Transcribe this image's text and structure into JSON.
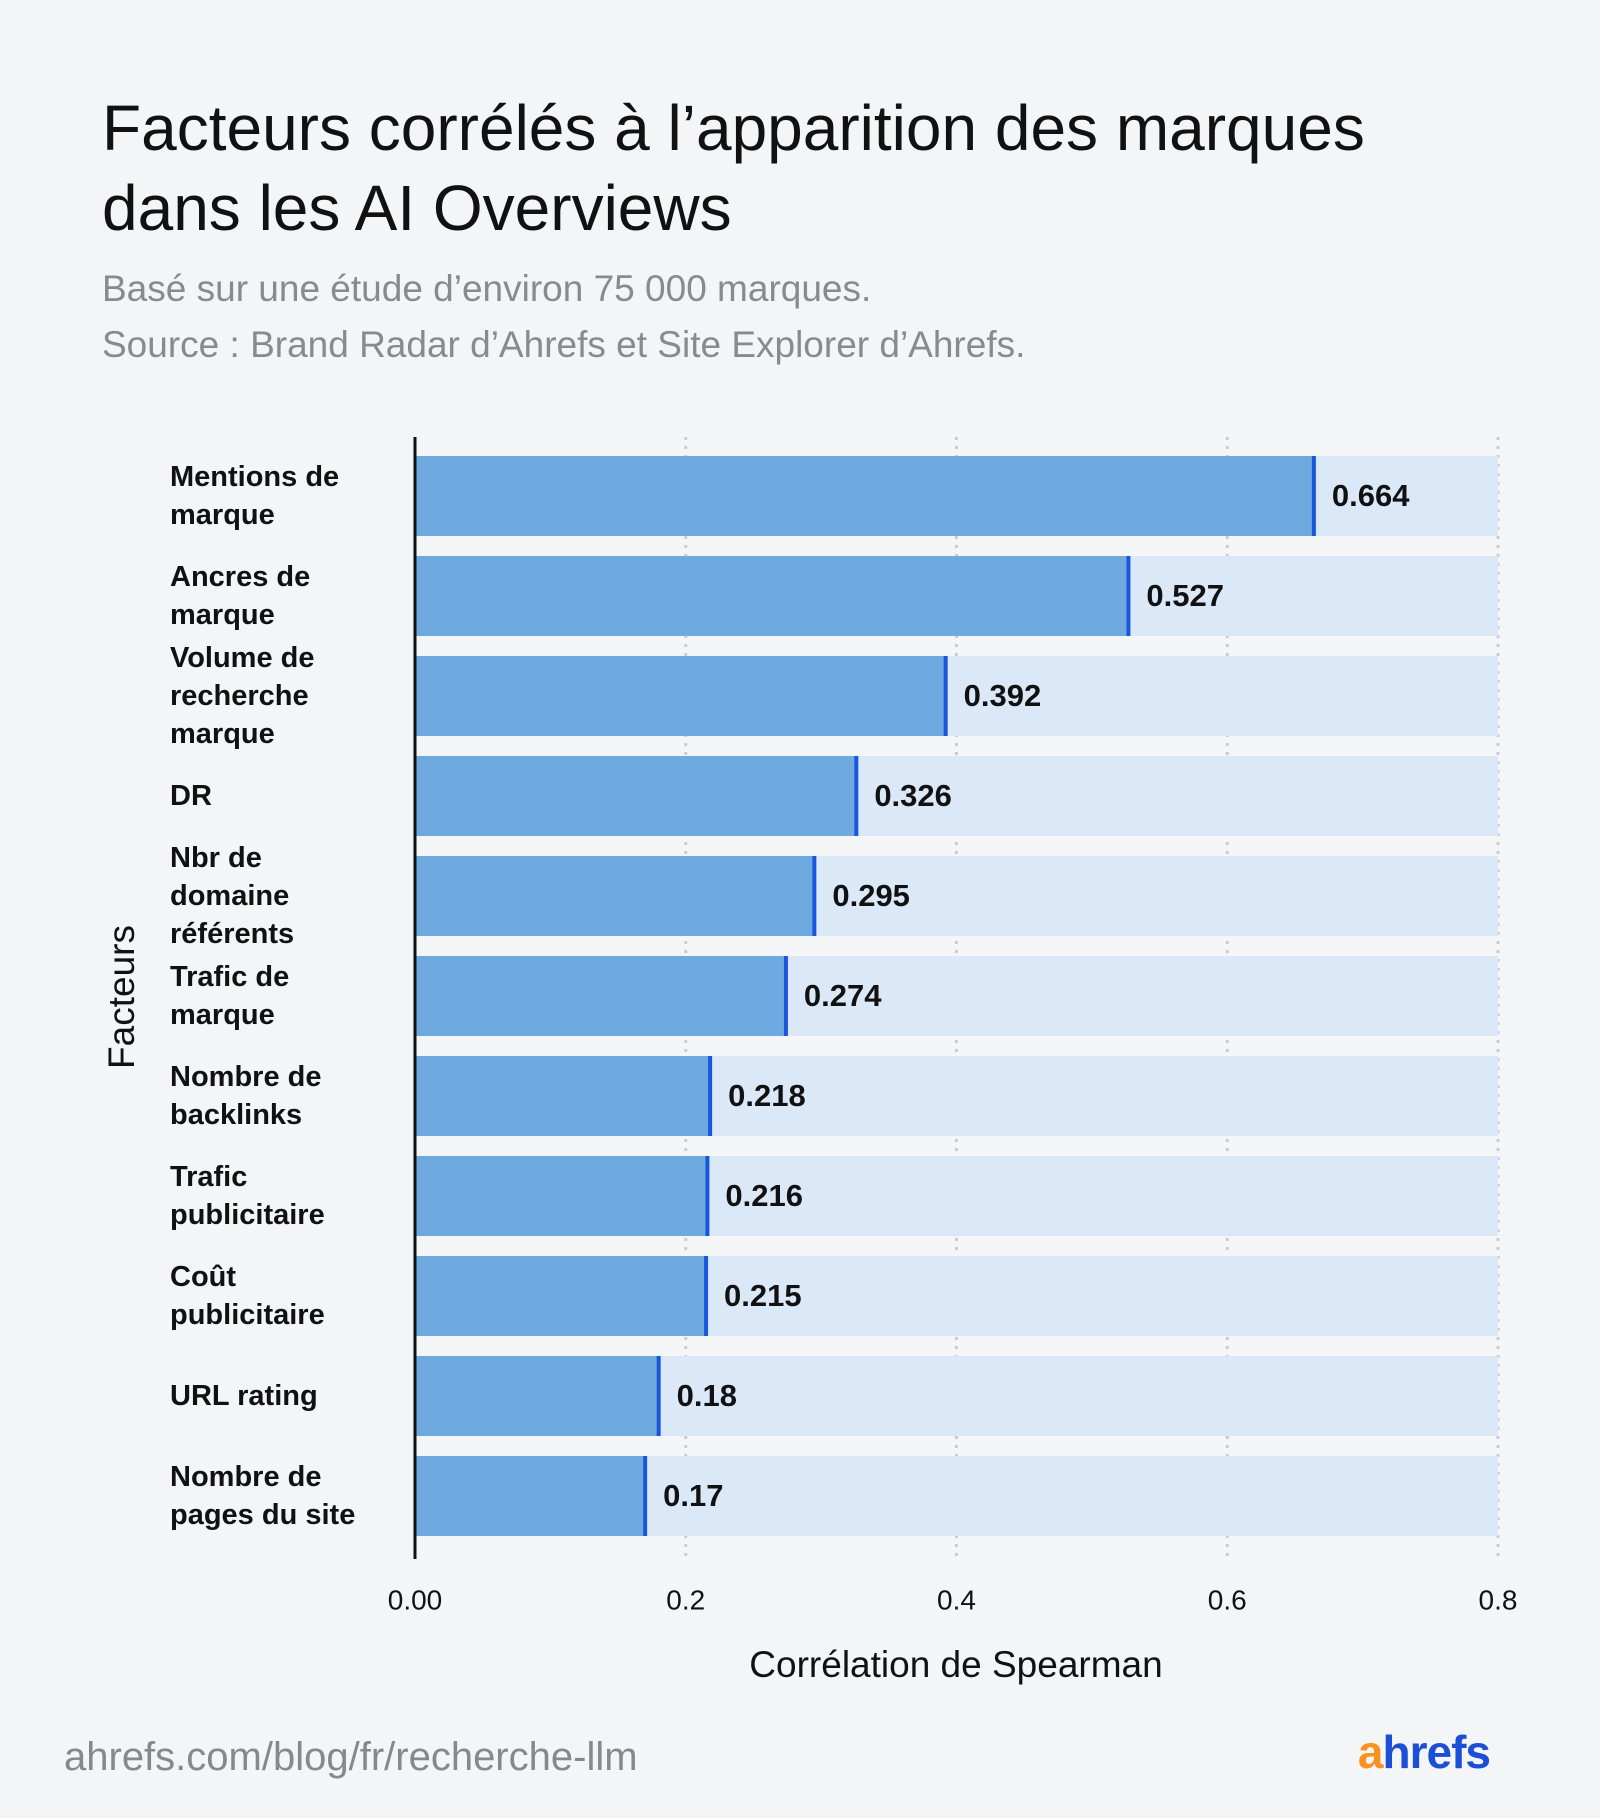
{
  "chart_data": {
    "type": "bar",
    "orientation": "horizontal",
    "title": "Facteurs corrélés à l’apparition des marques dans les AI Overviews",
    "subtitle": [
      "Basé sur une étude d’environ 75 000 marques.",
      "Source : Brand Radar d’Ahrefs et Site Explorer d’Ahrefs."
    ],
    "y_label": "Facteurs",
    "x_label": "Corrélation de Spearman",
    "categories": [
      "Mentions de marque",
      "Ancres de marque",
      "Volume de recherche marque",
      "DR",
      "Nbr de domaine référents",
      "Trafic de marque",
      "Nombre de backlinks",
      "Trafic publicitaire",
      "Coût publicitaire",
      "URL rating",
      "Nombre de pages du site"
    ],
    "values": [
      0.664,
      0.527,
      0.392,
      0.326,
      0.295,
      0.274,
      0.218,
      0.216,
      0.215,
      0.18,
      0.17
    ],
    "color": "#6eaae0",
    "track_color": "#dbe8f8",
    "edge_color": "#1a56db",
    "xlim": [
      0,
      0.8
    ],
    "xticks": [
      {
        "value": 0,
        "label": "0.00"
      },
      0.2,
      0.4,
      0.6,
      0.8
    ],
    "grid": true
  },
  "footer": {
    "url": "ahrefs.com/blog/fr/recherche-llm",
    "logo": {
      "accent": "a",
      "rest": "hrefs"
    }
  }
}
